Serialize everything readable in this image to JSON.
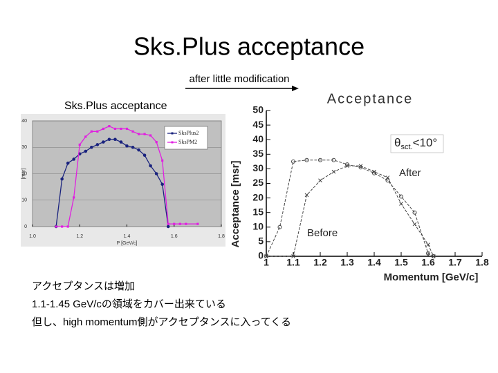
{
  "title": "Sks.Plus acceptance",
  "arrow_note": "after little modification",
  "left_caption": "Sks.Plus acceptance",
  "notes": [
    "アクセプタンスは増加",
    "1.1-1.45 GeV/cの領域をカバー出来ている",
    "但し、high momentum側がアクセプタンスに入ってくる"
  ],
  "chart_data": [
    {
      "type": "line",
      "xlabel": "P [GeV/c]",
      "ylabel": "[msr]",
      "xlim": [
        1.0,
        1.8
      ],
      "xticks": [
        {
          "value": 1.0,
          "label": "1.0"
        },
        1.2,
        1.4,
        1.6,
        1.8
      ],
      "ylim": [
        0,
        40
      ],
      "yticks": [
        0,
        10,
        20,
        30,
        40
      ],
      "grid": true,
      "legend": "upper right",
      "series": [
        {
          "name": "SksPlus2",
          "color": "#1a237e",
          "marker": "circle",
          "x": [
            1.1,
            1.125,
            1.15,
            1.175,
            1.2,
            1.225,
            1.25,
            1.275,
            1.3,
            1.325,
            1.35,
            1.375,
            1.4,
            1.425,
            1.45,
            1.475,
            1.5,
            1.525,
            1.55,
            1.575
          ],
          "values": [
            0,
            18,
            24,
            25.5,
            27.5,
            28.5,
            30,
            31,
            32,
            33,
            33,
            32,
            30.5,
            30,
            29,
            27,
            23,
            20,
            16,
            0
          ]
        },
        {
          "name": "SksPM2",
          "color": "#e020e0",
          "marker": "square",
          "x": [
            1.1,
            1.125,
            1.15,
            1.175,
            1.2,
            1.225,
            1.25,
            1.275,
            1.3,
            1.325,
            1.35,
            1.375,
            1.4,
            1.425,
            1.45,
            1.475,
            1.5,
            1.525,
            1.55,
            1.575,
            1.6,
            1.625,
            1.65,
            1.7
          ],
          "values": [
            0,
            0,
            0,
            11,
            31,
            34,
            36,
            36,
            37,
            38,
            37,
            37,
            37,
            36,
            35,
            35,
            34.5,
            32,
            25,
            1,
            1,
            1,
            1,
            1
          ]
        }
      ]
    },
    {
      "type": "line",
      "title": "Acceptance",
      "xlabel": "Momentum [GeV/c]",
      "ylabel": "Acceptance [msr]",
      "xlim": [
        1,
        1.8
      ],
      "xticks": [
        1,
        1.1,
        1.2,
        1.3,
        1.4,
        1.5,
        1.6,
        1.7,
        1.8
      ],
      "ylim": [
        0,
        50
      ],
      "yticks": [
        0,
        5,
        10,
        15,
        20,
        25,
        30,
        35,
        40,
        45,
        50
      ],
      "grid": false,
      "annotations": [
        {
          "parts": [
            "θ",
            "sct.",
            "<10°"
          ]
        },
        {
          "text": "After"
        },
        {
          "text": "Before"
        }
      ],
      "series": [
        {
          "label": "After",
          "color": "#444444",
          "marker": "circle",
          "x": [
            1.0,
            1.05,
            1.1,
            1.15,
            1.2,
            1.25,
            1.3,
            1.35,
            1.4,
            1.45,
            1.5,
            1.55,
            1.6,
            1.62
          ],
          "values": [
            0,
            10,
            32.5,
            33,
            33,
            33,
            31.5,
            30.5,
            28.5,
            26,
            20.5,
            15,
            1,
            0
          ]
        },
        {
          "label": "Before",
          "color": "#444444",
          "marker": "cross",
          "x": [
            1.0,
            1.1,
            1.15,
            1.2,
            1.25,
            1.3,
            1.35,
            1.4,
            1.45,
            1.5,
            1.55,
            1.6,
            1.62
          ],
          "values": [
            0,
            0,
            21,
            26,
            29,
            31,
            31,
            29,
            27,
            18,
            11,
            4,
            0
          ]
        }
      ]
    }
  ]
}
